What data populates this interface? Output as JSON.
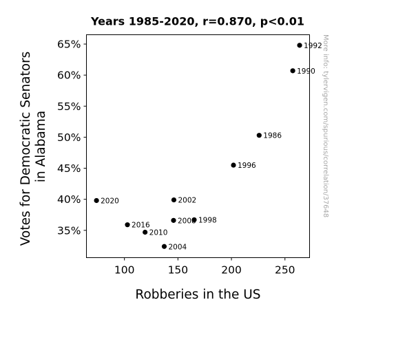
{
  "chart_data": {
    "type": "scatter",
    "title": "Years 1985-2020, r=0.870, p<0.01",
    "xlabel": "Robberies in the US",
    "ylabel_lines": [
      "Votes for Democratic Senators",
      "in Alabama"
    ],
    "xlim": [
      64.5,
      273
    ],
    "ylim": [
      30.6,
      66.5
    ],
    "xticks": [
      100,
      150,
      200,
      250
    ],
    "xtick_labels": [
      "100",
      "150",
      "200",
      "250"
    ],
    "yticks": [
      35,
      40,
      45,
      50,
      55,
      60,
      65
    ],
    "ytick_labels": [
      "35%",
      "40%",
      "45%",
      "50%",
      "55%",
      "60%",
      "65%"
    ],
    "grid": false,
    "legend": "none",
    "marker_color": "#000000",
    "points": [
      {
        "label": "1986",
        "x": 225.9,
        "y": 50.3
      },
      {
        "label": "1990",
        "x": 257.3,
        "y": 60.7
      },
      {
        "label": "1992",
        "x": 263.7,
        "y": 64.8
      },
      {
        "label": "1996",
        "x": 201.9,
        "y": 45.5
      },
      {
        "label": "1998",
        "x": 165.2,
        "y": 36.7
      },
      {
        "label": "2002",
        "x": 146.2,
        "y": 39.9
      },
      {
        "label": "2004",
        "x": 137.2,
        "y": 32.4
      },
      {
        "label": "2008",
        "x": 145.9,
        "y": 36.6
      },
      {
        "label": "2010",
        "x": 119.3,
        "y": 34.7
      },
      {
        "label": "2016",
        "x": 102.8,
        "y": 35.9
      },
      {
        "label": "2020",
        "x": 73.9,
        "y": 39.8
      }
    ]
  },
  "watermark": "More info: tylervigen.com/spurious/correlation/37648"
}
